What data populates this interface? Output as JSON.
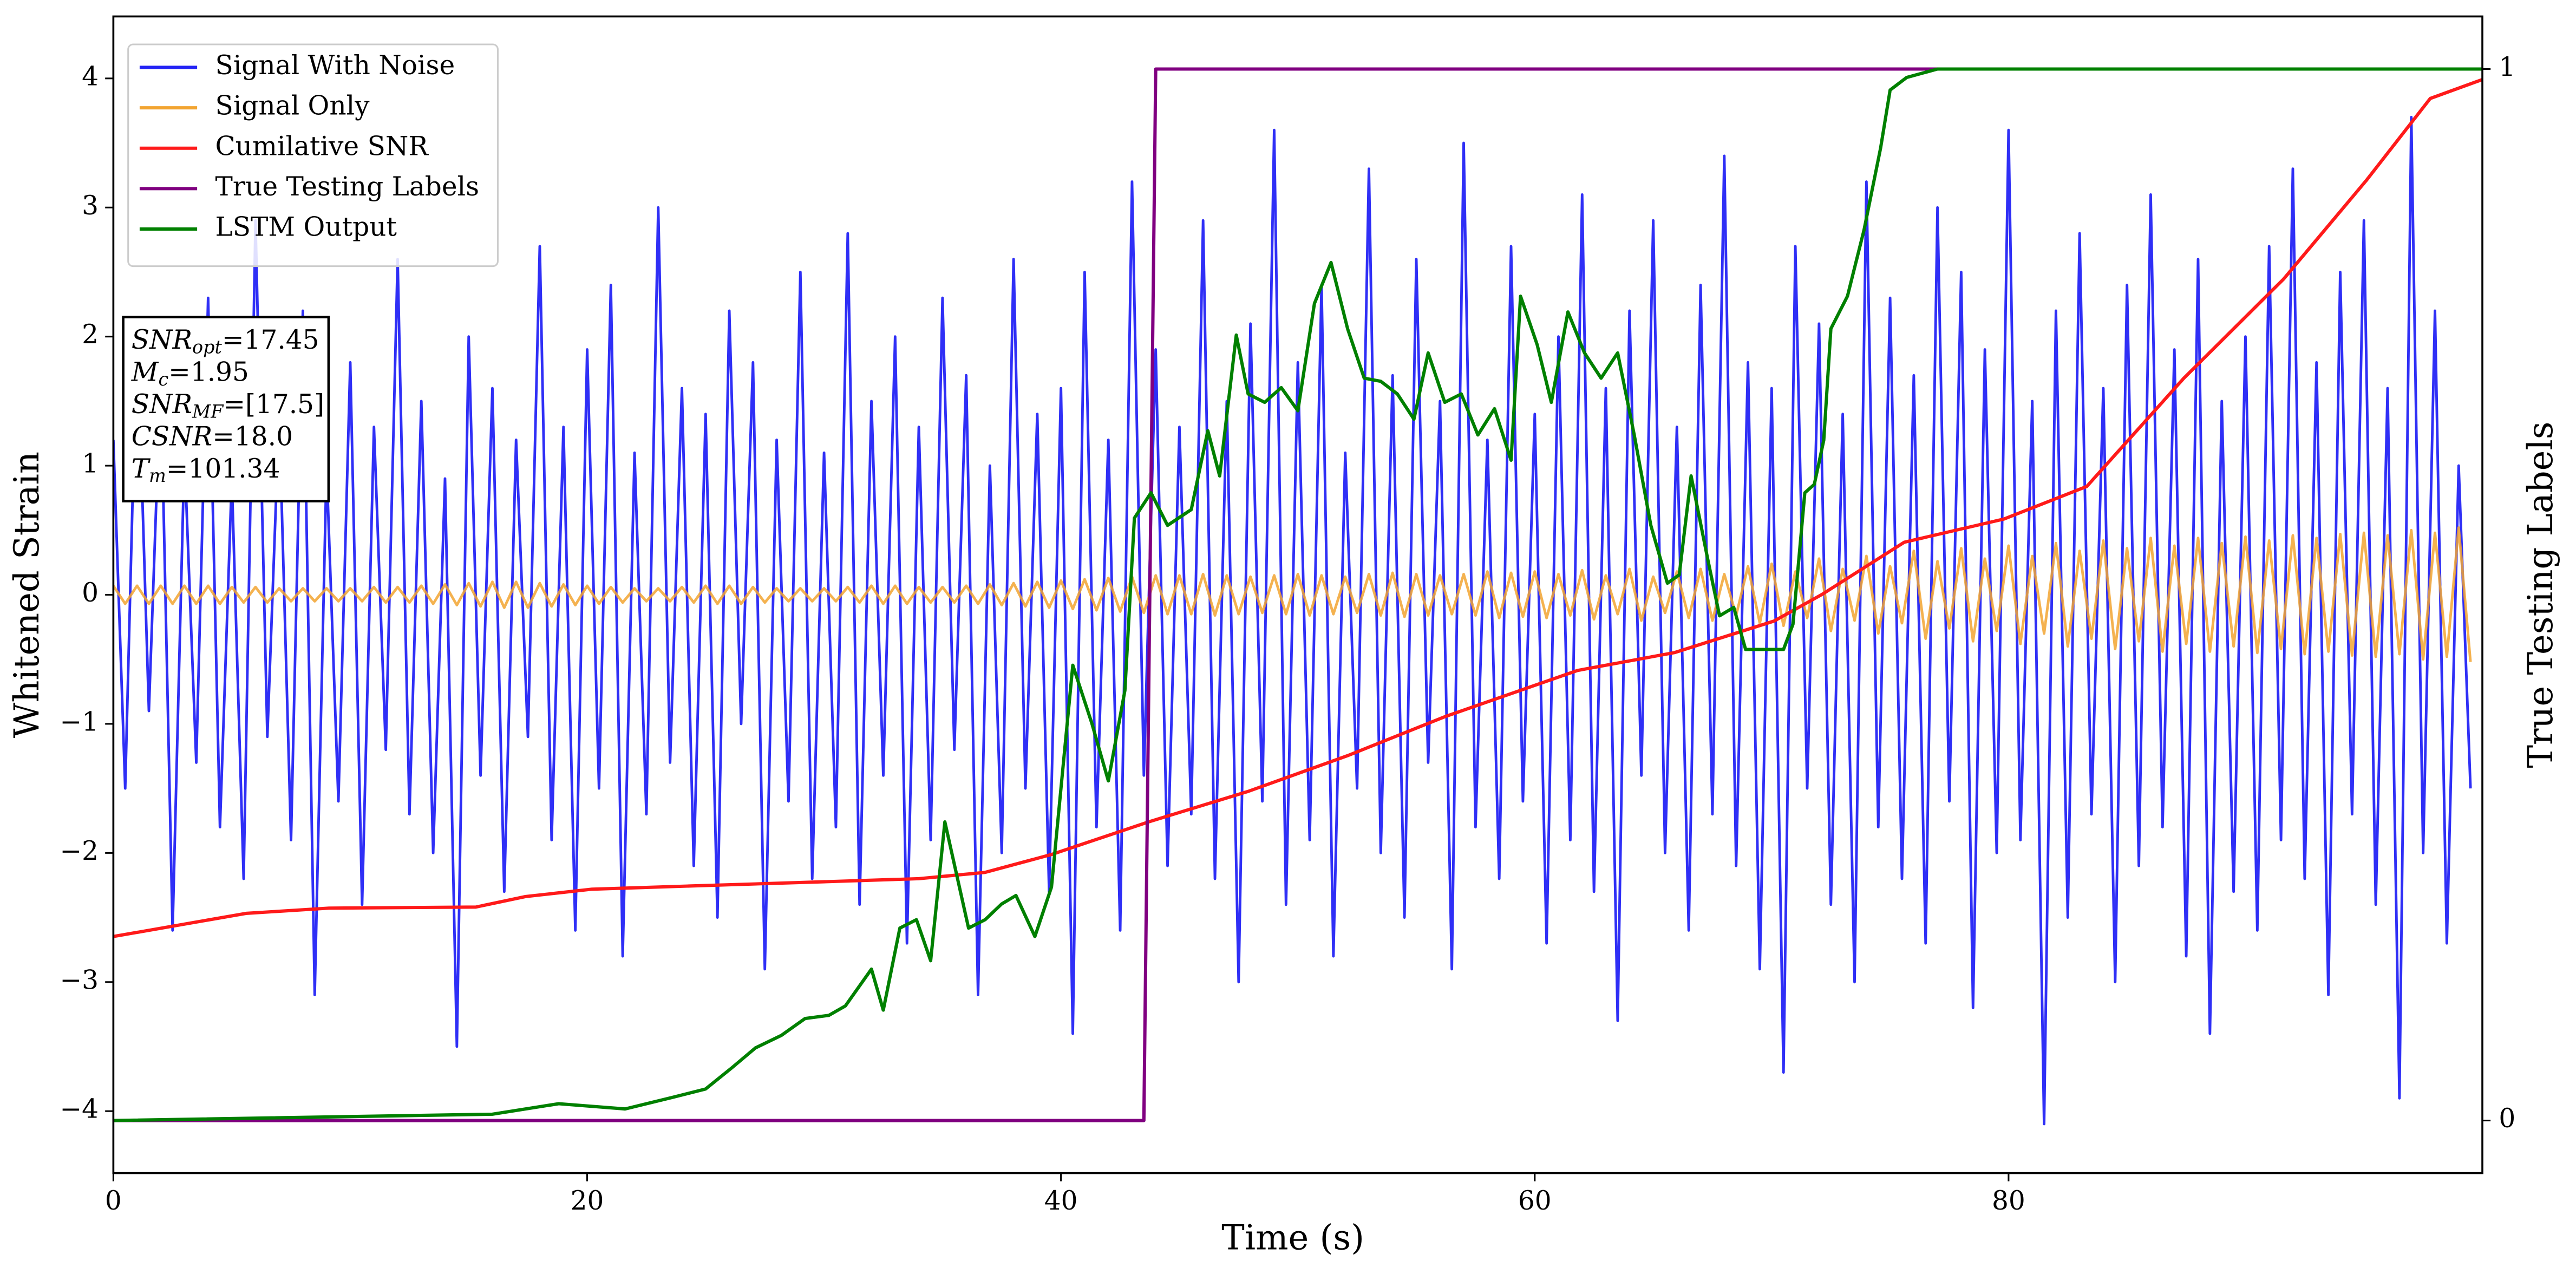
{
  "chart_data": {
    "type": "line",
    "xlabel": "Time (s)",
    "ylabel": "Whitened Strain",
    "y2label": "True Testing Labels",
    "xlim": [
      0,
      100
    ],
    "ylim": [
      -4.48,
      4.48
    ],
    "y2lim": [
      -0.05,
      1.05
    ],
    "xticks": [
      0,
      20,
      40,
      60,
      80
    ],
    "yticks": [
      {
        "value": -4,
        "label": "−4"
      },
      {
        "value": -3,
        "label": "−3"
      },
      {
        "value": -2,
        "label": "−2"
      },
      {
        "value": -1,
        "label": "−1"
      },
      0,
      1,
      2,
      3,
      4
    ],
    "y2ticks": [
      0,
      1
    ],
    "legend": "upper left",
    "x": [
      0,
      0.5,
      1,
      1.5,
      2,
      2.5,
      3,
      3.5,
      4,
      4.5,
      5,
      5.5,
      6,
      6.5,
      7,
      7.5,
      8,
      8.5,
      9,
      9.5,
      10,
      10.5,
      11,
      11.5,
      12,
      12.5,
      13,
      13.5,
      14,
      14.5,
      15,
      15.5,
      16,
      16.5,
      17,
      17.5,
      18,
      18.5,
      19,
      19.5,
      20,
      20.5,
      21,
      21.5,
      22,
      22.5,
      23,
      23.5,
      24,
      24.5,
      25,
      25.5,
      26,
      26.5,
      27,
      27.5,
      28,
      28.5,
      29,
      29.5,
      30,
      30.5,
      31,
      31.5,
      32,
      32.5,
      33,
      33.5,
      34,
      34.5,
      35,
      35.5,
      36,
      36.5,
      37,
      37.5,
      38,
      38.5,
      39,
      39.5,
      40,
      40.5,
      41,
      41.5,
      42,
      42.5,
      43,
      43.5,
      44,
      44.5,
      45,
      45.5,
      46,
      46.5,
      47,
      47.5,
      48,
      48.5,
      49,
      49.5,
      50,
      50.5,
      51,
      51.5,
      52,
      52.5,
      53,
      53.5,
      54,
      54.5,
      55,
      55.5,
      56,
      56.5,
      57,
      57.5,
      58,
      58.5,
      59,
      59.5,
      60,
      60.5,
      61,
      61.5,
      62,
      62.5,
      63,
      63.5,
      64,
      64.5,
      65,
      65.5,
      66,
      66.5,
      67,
      67.5,
      68,
      68.5,
      69,
      69.5,
      70,
      70.5,
      71,
      71.5,
      72,
      72.5,
      73,
      73.5,
      74,
      74.5,
      75,
      75.5,
      76,
      76.5,
      77,
      77.5,
      78,
      78.5,
      79,
      79.5,
      80,
      80.5,
      81,
      81.5,
      82,
      82.5,
      83,
      83.5,
      84,
      84.5,
      85,
      85.5,
      86,
      86.5,
      87,
      87.5,
      88,
      88.5,
      89,
      89.5,
      90,
      90.5,
      91,
      91.5,
      92,
      92.5,
      93,
      93.5,
      94,
      94.5,
      95,
      95.5,
      96,
      96.5,
      97,
      97.5,
      98,
      98.5,
      99,
      99.5
    ],
    "series": [
      {
        "name": "Signal With Noise",
        "color": "#2424f5",
        "axis": "y",
        "values": [
          1.2,
          -1.5,
          2.1,
          -0.9,
          1.7,
          -2.6,
          1.1,
          -1.3,
          2.3,
          -1.8,
          0.9,
          -2.2,
          2.9,
          -1.1,
          1.4,
          -1.9,
          2.2,
          -3.1,
          1.0,
          -1.6,
          1.8,
          -2.4,
          1.3,
          -1.2,
          2.6,
          -1.7,
          1.5,
          -2.0,
          0.9,
          -3.5,
          2.0,
          -1.4,
          1.6,
          -2.3,
          1.2,
          -1.1,
          2.7,
          -1.9,
          1.3,
          -2.6,
          1.9,
          -1.5,
          2.4,
          -2.8,
          1.1,
          -1.7,
          3.0,
          -1.3,
          1.6,
          -2.1,
          1.4,
          -2.5,
          2.2,
          -1.0,
          1.8,
          -2.9,
          1.2,
          -1.6,
          2.5,
          -2.2,
          1.1,
          -1.8,
          2.8,
          -2.4,
          1.5,
          -1.4,
          2.0,
          -2.7,
          1.3,
          -1.9,
          2.3,
          -1.2,
          1.7,
          -3.1,
          1.0,
          -2.0,
          2.6,
          -1.5,
          1.4,
          -2.3,
          1.6,
          -3.4,
          2.5,
          -1.8,
          1.2,
          -2.6,
          3.2,
          -1.4,
          1.9,
          -2.1,
          1.3,
          -1.7,
          2.9,
          -2.2,
          1.5,
          -3.0,
          2.1,
          -1.6,
          3.6,
          -2.4,
          1.8,
          -1.9,
          2.4,
          -2.8,
          1.1,
          -1.5,
          3.3,
          -2.0,
          1.7,
          -2.5,
          2.6,
          -1.3,
          1.5,
          -2.9,
          3.5,
          -1.8,
          1.2,
          -2.2,
          2.7,
          -1.6,
          1.4,
          -2.7,
          2.0,
          -1.9,
          3.1,
          -2.3,
          1.6,
          -3.3,
          2.2,
          -1.4,
          2.9,
          -2.0,
          1.3,
          -2.6,
          2.4,
          -1.7,
          3.4,
          -2.1,
          1.8,
          -2.9,
          1.6,
          -3.7,
          2.7,
          -1.5,
          2.1,
          -2.4,
          1.4,
          -3.0,
          3.2,
          -1.8,
          2.3,
          -2.2,
          1.7,
          -2.7,
          3.0,
          -1.6,
          2.5,
          -3.2,
          1.9,
          -2.0,
          3.6,
          -1.9,
          1.5,
          -4.1,
          2.2,
          -2.5,
          2.8,
          -1.7,
          1.6,
          -3.0,
          2.4,
          -2.1,
          3.1,
          -1.8,
          1.9,
          -2.8,
          2.6,
          -3.4,
          1.5,
          -2.3,
          2.0,
          -2.6,
          2.7,
          -1.9,
          3.3,
          -2.2,
          1.8,
          -3.1,
          2.5,
          -1.7,
          2.9,
          -2.4,
          1.6,
          -3.9,
          3.7,
          -2.0,
          2.2,
          -2.7,
          1.0,
          -1.5
        ]
      },
      {
        "name": "Signal Only",
        "color": "#f2a431",
        "axis": "y",
        "values": [
          0.07,
          -0.07,
          0.07,
          -0.07,
          0.07,
          -0.07,
          0.07,
          -0.07,
          0.07,
          -0.07,
          0.06,
          -0.06,
          0.06,
          -0.06,
          0.05,
          -0.05,
          0.05,
          -0.05,
          0.05,
          -0.05,
          0.05,
          -0.05,
          0.06,
          -0.06,
          0.06,
          -0.06,
          0.07,
          -0.07,
          0.08,
          -0.08,
          0.09,
          -0.09,
          0.1,
          -0.1,
          0.1,
          -0.1,
          0.09,
          -0.09,
          0.08,
          -0.08,
          0.07,
          -0.07,
          0.06,
          -0.06,
          0.05,
          -0.05,
          0.05,
          -0.05,
          0.06,
          -0.06,
          0.07,
          -0.07,
          0.07,
          -0.07,
          0.06,
          -0.06,
          0.05,
          -0.05,
          0.05,
          -0.05,
          0.05,
          -0.05,
          0.06,
          -0.06,
          0.07,
          -0.07,
          0.07,
          -0.07,
          0.06,
          -0.06,
          0.06,
          -0.06,
          0.07,
          -0.07,
          0.08,
          -0.08,
          0.09,
          -0.09,
          0.1,
          -0.1,
          0.11,
          -0.11,
          0.12,
          -0.12,
          0.13,
          -0.13,
          0.14,
          -0.14,
          0.15,
          -0.15,
          0.15,
          -0.15,
          0.16,
          -0.16,
          0.15,
          -0.15,
          0.14,
          -0.14,
          0.15,
          -0.15,
          0.16,
          -0.16,
          0.15,
          -0.15,
          0.14,
          -0.14,
          0.16,
          -0.16,
          0.17,
          -0.17,
          0.16,
          -0.16,
          0.15,
          -0.15,
          0.16,
          -0.16,
          0.18,
          -0.18,
          0.17,
          -0.17,
          0.18,
          -0.18,
          0.16,
          -0.16,
          0.19,
          -0.19,
          0.15,
          -0.15,
          0.2,
          -0.2,
          0.14,
          -0.14,
          0.18,
          -0.18,
          0.2,
          -0.2,
          0.16,
          -0.16,
          0.22,
          -0.22,
          0.24,
          -0.24,
          0.18,
          -0.18,
          0.28,
          -0.28,
          0.2,
          -0.2,
          0.3,
          -0.3,
          0.22,
          -0.22,
          0.34,
          -0.34,
          0.26,
          -0.26,
          0.36,
          -0.36,
          0.28,
          -0.28,
          0.38,
          -0.38,
          0.3,
          -0.3,
          0.4,
          -0.4,
          0.34,
          -0.34,
          0.42,
          -0.42,
          0.36,
          -0.36,
          0.44,
          -0.44,
          0.38,
          -0.38,
          0.44,
          -0.44,
          0.4,
          -0.4,
          0.45,
          -0.45,
          0.42,
          -0.42,
          0.46,
          -0.46,
          0.44,
          -0.44,
          0.47,
          -0.47,
          0.48,
          -0.48,
          0.46,
          -0.46,
          0.5,
          -0.5,
          0.48,
          -0.48,
          0.52,
          -0.52
        ]
      },
      {
        "name": "Cumilative SNR",
        "color": "#ff1a1a",
        "axis": "y2",
        "x": [
          0,
          5.6,
          9.1,
          15.3,
          17.4,
          20.2,
          24.3,
          29.9,
          34.0,
          36.8,
          39.6,
          43.7,
          47.9,
          52.1,
          56.2,
          61.8,
          65.9,
          70.1,
          72.1,
          75.6,
          79.8,
          83.3,
          87.4,
          91.6,
          95.1,
          97.8,
          100
        ],
        "values": [
          0.175,
          0.197,
          0.202,
          0.203,
          0.213,
          0.22,
          0.223,
          0.227,
          0.23,
          0.236,
          0.253,
          0.284,
          0.313,
          0.347,
          0.384,
          0.428,
          0.445,
          0.475,
          0.5,
          0.55,
          0.572,
          0.603,
          0.706,
          0.8,
          0.894,
          0.972,
          0.99
        ]
      },
      {
        "name": "True Testing Labels",
        "color": "#800080",
        "axis": "y2",
        "x": [
          0,
          43.5,
          44.0,
          100
        ],
        "values": [
          0,
          0,
          1,
          1
        ]
      },
      {
        "name": "LSTM Output",
        "color": "#008000",
        "axis": "y2",
        "x": [
          0,
          16.0,
          18.8,
          21.6,
          23.6,
          25.0,
          26.1,
          27.1,
          28.2,
          29.2,
          30.2,
          30.9,
          32.0,
          32.5,
          33.2,
          33.9,
          34.5,
          35.1,
          36.1,
          36.8,
          37.5,
          38.1,
          38.9,
          39.6,
          40.5,
          41.3,
          42.0,
          42.7,
          43.1,
          43.8,
          44.5,
          45.5,
          46.2,
          46.7,
          47.4,
          47.9,
          48.6,
          49.3,
          50.0,
          50.7,
          51.4,
          52.1,
          52.8,
          53.5,
          54.2,
          54.9,
          55.5,
          56.2,
          56.9,
          57.6,
          58.3,
          59.0,
          59.4,
          60.1,
          60.7,
          61.4,
          62.1,
          62.8,
          63.5,
          64.2,
          64.9,
          65.6,
          66.1,
          66.6,
          67.3,
          67.8,
          68.4,
          68.9,
          69.8,
          70.5,
          70.9,
          71.4,
          71.8,
          72.2,
          72.5,
          73.2,
          73.9,
          74.6,
          75.0,
          75.7,
          77.0,
          100
        ],
        "values": [
          0,
          0.006,
          0.016,
          0.011,
          0.022,
          0.03,
          0.05,
          0.069,
          0.081,
          0.097,
          0.1,
          0.109,
          0.144,
          0.105,
          0.183,
          0.191,
          0.152,
          0.284,
          0.183,
          0.191,
          0.206,
          0.214,
          0.175,
          0.222,
          0.433,
          0.378,
          0.323,
          0.409,
          0.573,
          0.597,
          0.566,
          0.581,
          0.656,
          0.613,
          0.747,
          0.691,
          0.683,
          0.697,
          0.675,
          0.777,
          0.816,
          0.753,
          0.706,
          0.703,
          0.691,
          0.667,
          0.73,
          0.683,
          0.691,
          0.652,
          0.677,
          0.628,
          0.784,
          0.738,
          0.683,
          0.769,
          0.73,
          0.706,
          0.73,
          0.652,
          0.566,
          0.511,
          0.519,
          0.613,
          0.534,
          0.48,
          0.488,
          0.448,
          0.448,
          0.448,
          0.472,
          0.597,
          0.605,
          0.647,
          0.753,
          0.784,
          0.847,
          0.925,
          0.98,
          0.992,
          1.0,
          1.0
        ]
      }
    ],
    "annotations": [
      {
        "symbol": "SNR",
        "subscript": "opt",
        "value": "=17.45"
      },
      {
        "symbol": "M",
        "subscript": "c",
        "value": "=1.95"
      },
      {
        "symbol": "SNR",
        "subscript": "MF",
        "value": "=[17.5]"
      },
      {
        "symbol": "CSNR",
        "value": "=18.0"
      },
      {
        "symbol": "T",
        "subscript": "m",
        "value": "=101.34"
      }
    ]
  }
}
